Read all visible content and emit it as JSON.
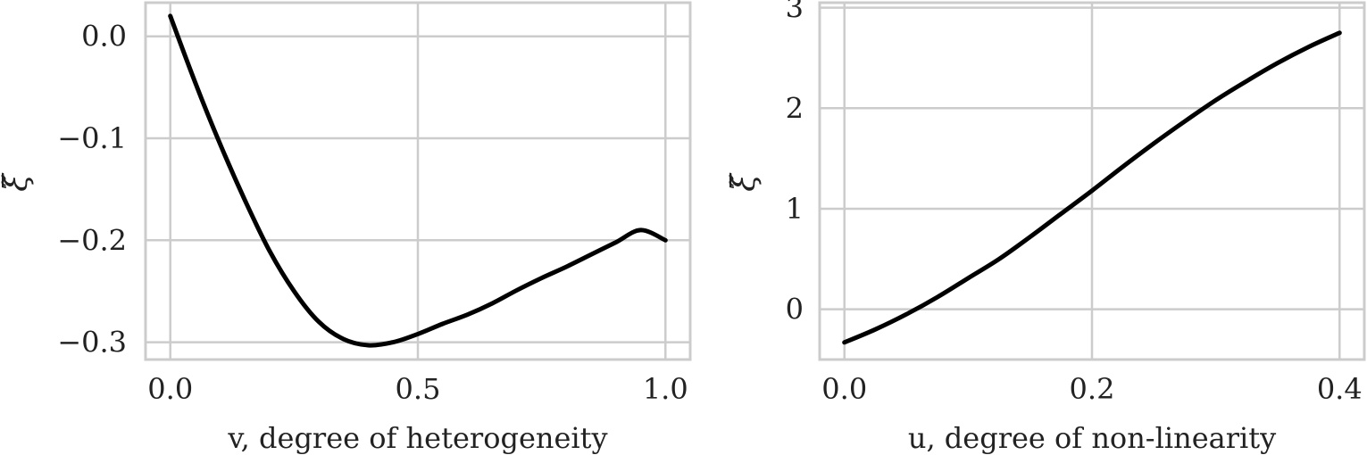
{
  "chart_data": [
    {
      "type": "line",
      "xlabel": "v, degree of heterogeneity",
      "ylabel": "ξ̃",
      "xlim": [
        -0.05,
        1.05
      ],
      "ylim": [
        -0.317,
        0.033
      ],
      "xticks": [
        0.0,
        0.5,
        1.0
      ],
      "xtick_labels": [
        "0.0",
        "0.5",
        "1.0"
      ],
      "yticks": [
        0.0,
        -0.1,
        -0.2,
        -0.3
      ],
      "ytick_labels": [
        "0.0",
        "−0.1",
        "−0.2",
        "−0.3"
      ],
      "grid": true,
      "series": [
        {
          "color": "#000000",
          "x": [
            0.0,
            0.05,
            0.1,
            0.15,
            0.2,
            0.25,
            0.3,
            0.35,
            0.4,
            0.45,
            0.5,
            0.55,
            0.6,
            0.65,
            0.7,
            0.75,
            0.8,
            0.85,
            0.9,
            0.95,
            1.0
          ],
          "y": [
            0.02,
            -0.045,
            -0.105,
            -0.16,
            -0.21,
            -0.25,
            -0.28,
            -0.297,
            -0.303,
            -0.3,
            -0.292,
            -0.282,
            -0.273,
            -0.262,
            -0.249,
            -0.237,
            -0.226,
            -0.214,
            -0.202,
            -0.19,
            -0.2
          ]
        }
      ]
    },
    {
      "type": "line",
      "xlabel": "u, degree of non-linearity",
      "ylabel": "ξ̃",
      "xlim": [
        -0.02,
        0.42
      ],
      "ylim": [
        -0.5,
        3.05
      ],
      "xticks": [
        0.0,
        0.2,
        0.4
      ],
      "xtick_labels": [
        "0.0",
        "0.2",
        "0.4"
      ],
      "yticks": [
        0,
        1,
        2,
        3
      ],
      "ytick_labels": [
        "0",
        "1",
        "2",
        "3"
      ],
      "grid": true,
      "series": [
        {
          "color": "#000000",
          "x": [
            0.0,
            0.025,
            0.05,
            0.075,
            0.1,
            0.125,
            0.15,
            0.175,
            0.2,
            0.225,
            0.25,
            0.275,
            0.3,
            0.325,
            0.35,
            0.375,
            0.4
          ],
          "y": [
            -0.33,
            -0.2,
            -0.05,
            0.12,
            0.31,
            0.5,
            0.72,
            0.95,
            1.18,
            1.42,
            1.65,
            1.87,
            2.08,
            2.27,
            2.45,
            2.61,
            2.75
          ]
        }
      ]
    }
  ]
}
